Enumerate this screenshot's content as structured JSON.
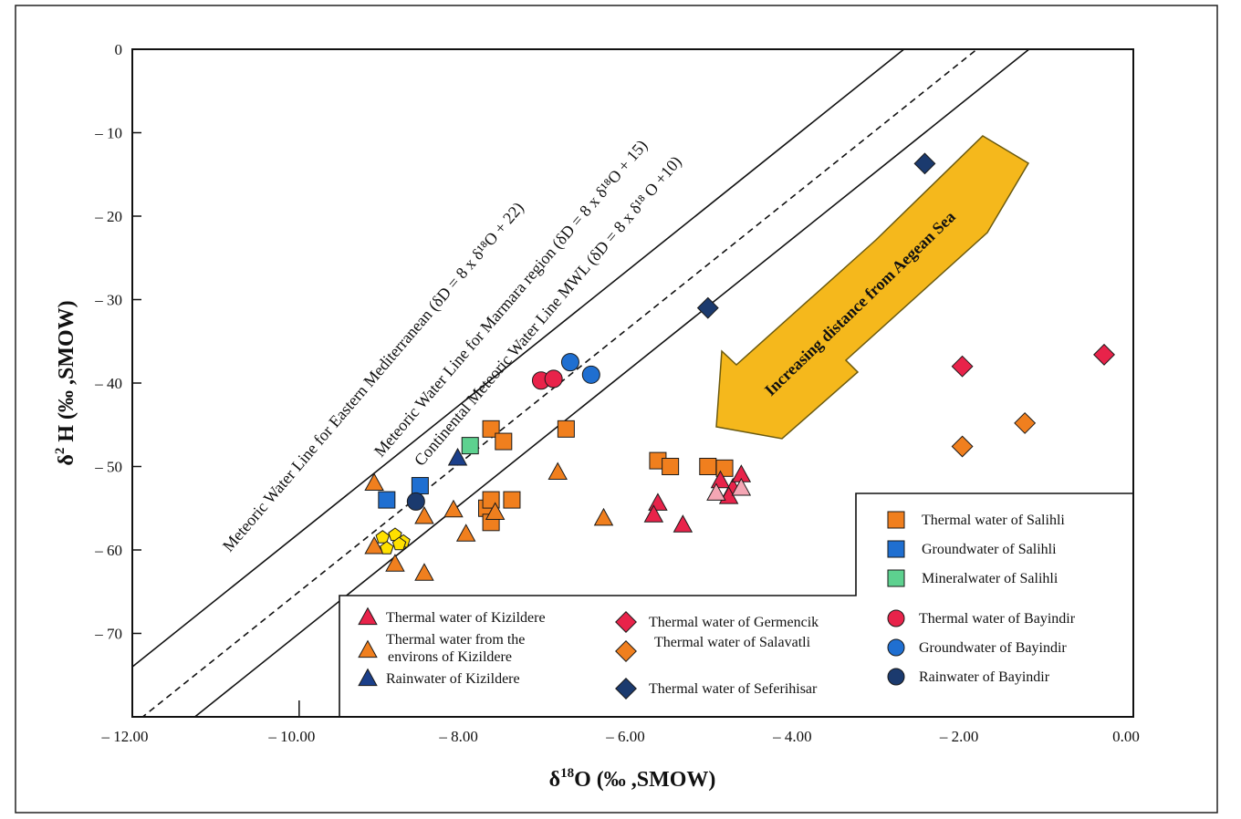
{
  "chart_data": {
    "type": "scatter",
    "xlabel_main": "δ",
    "xlabel_sup": "18",
    "xlabel_rest": "O (‰ ,SMOW)",
    "ylabel_main": "δ",
    "ylabel_sup": "2",
    "ylabel_rest": " H (‰ ,SMOW)",
    "xlim": [
      -12,
      0
    ],
    "ylim": [
      -80,
      0
    ],
    "x_ticks": [
      {
        "value": -12,
        "label": "– 12.00"
      },
      {
        "value": -10,
        "label": "– 10.00"
      },
      {
        "value": -8,
        "label": "– 8.00"
      },
      {
        "value": -6,
        "label": "– 6.00"
      },
      {
        "value": -4,
        "label": "– 4.00"
      },
      {
        "value": -2,
        "label": "– 2.00"
      },
      {
        "value": 0,
        "label": "0.00"
      }
    ],
    "y_ticks": [
      {
        "value": 0,
        "label": "0"
      },
      {
        "value": -10,
        "label": "– 10"
      },
      {
        "value": -20,
        "label": "– 20"
      },
      {
        "value": -30,
        "label": "– 30"
      },
      {
        "value": -40,
        "label": "– 40"
      },
      {
        "value": -50,
        "label": "– 50"
      },
      {
        "value": -60,
        "label": "– 60"
      },
      {
        "value": -70,
        "label": "– 70"
      }
    ],
    "reference_lines": [
      {
        "label": "Meteoric Water Line for Eastern Mediterranean (δD = 8 x δ¹⁸O + 22)",
        "slope": 8,
        "intercept": 22,
        "style": "solid"
      },
      {
        "label": "Meteoric Water Line for Marmara region (δD = 8 x δ¹⁸O + 15)",
        "slope": 8,
        "intercept": 15,
        "style": "dashed"
      },
      {
        "label": "Continental Meteoric Water Line MWL (δD = 8 x δ¹⁸ O +10)",
        "slope": 8,
        "intercept": 10,
        "style": "solid"
      }
    ],
    "annotation": "Increasing distance from Aegean Sea",
    "series": [
      {
        "name": "Thermal water of Salihli",
        "marker": "square",
        "color": "#f07f1e",
        "points": [
          [
            -7.7,
            -45.5
          ],
          [
            -7.55,
            -47
          ],
          [
            -6.8,
            -45.5
          ],
          [
            -5.7,
            -49.3
          ],
          [
            -5.55,
            -50
          ],
          [
            -5.1,
            -50
          ],
          [
            -4.9,
            -50.2
          ],
          [
            -7.75,
            -55
          ],
          [
            -7.7,
            -54
          ],
          [
            -7.7,
            -56.7
          ],
          [
            -7.45,
            -54
          ]
        ]
      },
      {
        "name": "Groundwater of Salihli",
        "marker": "square",
        "color": "#1f6fd1",
        "points": [
          [
            -8.95,
            -54
          ],
          [
            -8.55,
            -52.3
          ]
        ]
      },
      {
        "name": "Mineralwater of Salihli",
        "marker": "square",
        "color": "#5dd18f",
        "points": [
          [
            -7.95,
            -47.5
          ]
        ]
      },
      {
        "name": "Thermal water of Kizildere",
        "marker": "triangle",
        "color": "#e8234a",
        "points": [
          [
            -4.95,
            -51.7
          ],
          [
            -4.8,
            -52.6
          ],
          [
            -4.7,
            -51
          ],
          [
            -4.85,
            -53.6
          ],
          [
            -5.7,
            -54.4
          ],
          [
            -5.75,
            -55.8
          ],
          [
            -5.4,
            -57
          ]
        ]
      },
      {
        "name": "Thermal water from the environs of Kizildere",
        "marker": "triangle",
        "color": "#f07f1e",
        "points": [
          [
            -9.1,
            -52
          ],
          [
            -8.5,
            -56
          ],
          [
            -8.15,
            -55.2
          ],
          [
            -7.65,
            -55.5
          ],
          [
            -6.9,
            -50.7
          ],
          [
            -6.35,
            -56.2
          ],
          [
            -8.0,
            -58.1
          ],
          [
            -9.1,
            -59.6
          ],
          [
            -8.85,
            -61.7
          ],
          [
            -8.5,
            -62.8
          ]
        ]
      },
      {
        "name": "Thermal water of Kizildere (light)",
        "marker": "triangle",
        "color": "#f4a6b4",
        "legend": false,
        "points": [
          [
            -5.0,
            -53.2
          ],
          [
            -4.7,
            -52.6
          ]
        ]
      },
      {
        "name": "Rainwater of Kizildere",
        "marker": "triangle",
        "color": "#1b3f8a",
        "points": [
          [
            -8.1,
            -49
          ]
        ]
      },
      {
        "name": "Thermal water of Germencik",
        "marker": "diamond",
        "color": "#e8234a",
        "points": [
          [
            -2.05,
            -38
          ],
          [
            -0.35,
            -36.6
          ]
        ]
      },
      {
        "name": "Thermal water of Salavatli",
        "marker": "diamond",
        "color": "#f07f1e",
        "points": [
          [
            -2.05,
            -47.6
          ],
          [
            -1.3,
            -44.8
          ]
        ]
      },
      {
        "name": "Thermal water of Seferihisar",
        "marker": "diamond",
        "color": "#1b3a6e",
        "points": [
          [
            -2.5,
            -13.7
          ],
          [
            -5.1,
            -31
          ]
        ]
      },
      {
        "name": "Thermal water of Bayindir",
        "marker": "circle",
        "color": "#e8234a",
        "points": [
          [
            -7.1,
            -39.7
          ],
          [
            -6.95,
            -39.5
          ]
        ]
      },
      {
        "name": "Groundwater of Bayindir",
        "marker": "circle",
        "color": "#1f6fd1",
        "points": [
          [
            -6.75,
            -37.5
          ],
          [
            -6.5,
            -39
          ]
        ]
      },
      {
        "name": "Rainwater of Bayindir",
        "marker": "circle",
        "color": "#1b3a6e",
        "points": [
          [
            -8.6,
            -54.2
          ]
        ]
      },
      {
        "name": "Yellow samples",
        "marker": "pentagon",
        "color": "#ffe000",
        "legend": false,
        "points": [
          [
            -9.0,
            -58.5
          ],
          [
            -8.85,
            -58.2
          ],
          [
            -8.75,
            -59
          ],
          [
            -8.95,
            -59.8
          ],
          [
            -8.8,
            -59.3
          ]
        ]
      }
    ]
  },
  "legend": {
    "right_box": [
      {
        "text": "Thermal water of Salihli",
        "marker": "square",
        "color": "#f07f1e"
      },
      {
        "text": "Groundwater of Salihli",
        "marker": "square",
        "color": "#1f6fd1"
      },
      {
        "text": "Mineralwater of Salihli",
        "marker": "square",
        "color": "#5dd18f"
      }
    ],
    "col1": [
      {
        "text": "Thermal water of Kizildere",
        "marker": "triangle",
        "color": "#e8234a"
      },
      {
        "text": "Thermal water from the",
        "text2": "environs of Kizildere",
        "marker": "triangle",
        "color": "#f07f1e"
      },
      {
        "text": "Rainwater of Kizildere",
        "marker": "triangle",
        "color": "#1b3f8a"
      }
    ],
    "col2": [
      {
        "text": "Thermal water of Germencik",
        "marker": "diamond",
        "color": "#e8234a"
      },
      {
        "text": "Thermal water of Salavatli",
        "marker": "diamond",
        "color": "#f07f1e"
      },
      {
        "text": "Thermal water of Seferihisar",
        "marker": "diamond",
        "color": "#1b3a6e"
      }
    ],
    "col3": [
      {
        "text": "Thermal water of Bayindir",
        "marker": "circle",
        "color": "#e8234a"
      },
      {
        "text": "Groundwater of Bayindir",
        "marker": "circle",
        "color": "#1f6fd1"
      },
      {
        "text": "Rainwater of Bayindir",
        "marker": "circle",
        "color": "#1b3a6e"
      }
    ]
  },
  "colors": {
    "arrow_fill": "#f5b81c",
    "arrow_stroke": "#6b5a10"
  }
}
